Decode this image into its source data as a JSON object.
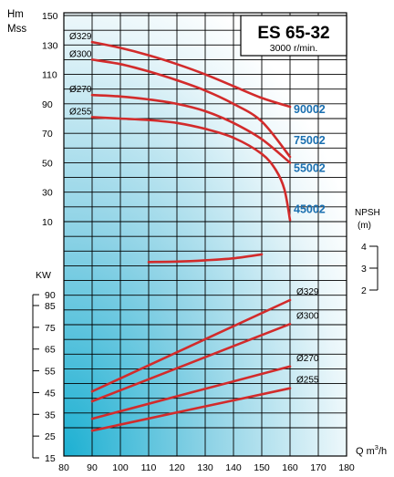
{
  "chart_data": {
    "type": "line",
    "title": "ES 65-32",
    "subtitle": "3000 r/min.",
    "x_unit_label": "Q m",
    "x_unit_sup": "3",
    "x_unit_tail": "/h",
    "xlim": [
      80,
      180
    ],
    "x_ticks": [
      "80",
      "90",
      "100",
      "110",
      "120",
      "130",
      "140",
      "150",
      "160",
      "170",
      "180"
    ],
    "head_axis": {
      "label_line1": "Hm",
      "label_line2": "Mss",
      "range": [
        0,
        150
      ],
      "ticks": [
        "10",
        "30",
        "50",
        "70",
        "90",
        "110",
        "130",
        "150"
      ]
    },
    "npsh_axis": {
      "label_line1": "NPSH",
      "label_line2": "(m)",
      "range": [
        1.5,
        4.5
      ],
      "ticks": [
        "2",
        "3",
        "4"
      ]
    },
    "power_axis": {
      "label": "KW",
      "range": [
        15,
        95
      ],
      "ticks": [
        "15",
        "25",
        "35",
        "45",
        "55",
        "65",
        "75",
        "85",
        "90"
      ]
    },
    "head_curves": [
      {
        "name": "Ø329",
        "model": "90002",
        "x": [
          90,
          100,
          110,
          120,
          130,
          140,
          150,
          160
        ],
        "y": [
          132,
          128,
          123,
          117,
          110,
          102,
          94,
          88
        ]
      },
      {
        "name": "Ø300",
        "model": "75002",
        "x": [
          90,
          100,
          110,
          120,
          130,
          140,
          150,
          160
        ],
        "y": [
          120,
          117,
          112,
          106,
          99,
          90,
          78,
          54
        ]
      },
      {
        "name": "Ø270",
        "model": "55002",
        "x": [
          90,
          100,
          110,
          120,
          130,
          140,
          150,
          160
        ],
        "y": [
          96,
          95,
          93,
          90,
          85,
          77,
          66,
          50
        ]
      },
      {
        "name": "Ø255",
        "model": "45002",
        "x": [
          90,
          100,
          110,
          120,
          130,
          140,
          150,
          155,
          158,
          160
        ],
        "y": [
          81,
          80,
          79,
          77,
          73,
          67,
          56,
          45,
          32,
          11
        ]
      }
    ],
    "npsh_curve": {
      "x": [
        110,
        120,
        130,
        140,
        150
      ],
      "y": [
        3.28,
        3.3,
        3.36,
        3.45,
        3.63
      ]
    },
    "power_curves": [
      {
        "name": "Ø329",
        "x": [
          90,
          160
        ],
        "y": [
          45.5,
          87.5
        ]
      },
      {
        "name": "Ø300",
        "x": [
          90,
          160
        ],
        "y": [
          41,
          76.5
        ]
      },
      {
        "name": "Ø270",
        "x": [
          90,
          160
        ],
        "y": [
          33,
          57
        ]
      },
      {
        "name": "Ø255",
        "x": [
          90,
          160
        ],
        "y": [
          27.5,
          47
        ]
      }
    ],
    "grid": true,
    "colors": {
      "curve": "#d22b2b",
      "model_label": "#1a6fb0",
      "grid": "#000000",
      "bg_top": "#ffffff",
      "bg_bottom_left": "#1cb0d2"
    }
  }
}
